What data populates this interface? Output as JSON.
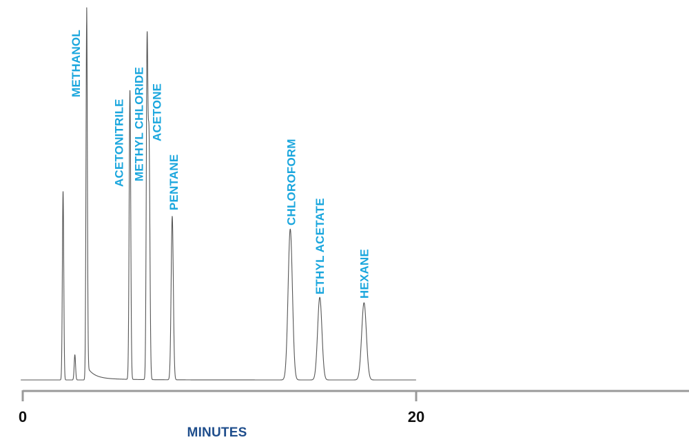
{
  "chart_data": {
    "type": "line",
    "title": "",
    "xlabel": "MINUTES",
    "ylabel": "",
    "xlim": [
      0,
      34.5
    ],
    "ylim": [
      0,
      100
    ],
    "x_ticks": [
      {
        "value": 0,
        "label": "0"
      },
      {
        "value": 20,
        "label": "20"
      }
    ],
    "trace_end": 20,
    "grid": false,
    "legend": "none",
    "colors": {
      "trace": "#555555",
      "labels": "#1aa6dd",
      "axis": "#9a9a9a",
      "tick_text": "#111111",
      "xlabel": "#1f4e8c"
    },
    "peaks": [
      {
        "name": "",
        "time": 2.05,
        "height": 52.5,
        "width": 0.035
      },
      {
        "name": "",
        "time": 2.65,
        "height": 7.0,
        "width": 0.035
      },
      {
        "name": "METHANOL",
        "time": 3.25,
        "height": 100,
        "width": 0.035,
        "tail": true
      },
      {
        "name": "ACETONITRILE",
        "time": 5.45,
        "height": 80.5,
        "width": 0.04
      },
      {
        "name": "METHYL CHLORIDE",
        "time": 6.32,
        "height": 90.5,
        "width": 0.04
      },
      {
        "name": "ACETONE",
        "time": 6.42,
        "height": 66.0,
        "width": 0.045
      },
      {
        "name": "PENTANE",
        "time": 7.6,
        "height": 45.5,
        "width": 0.055
      },
      {
        "name": "CHLOROFORM",
        "time": 13.6,
        "height": 42.0,
        "width": 0.11
      },
      {
        "name": "ETHYL ACETATE",
        "time": 15.1,
        "height": 23.0,
        "width": 0.11
      },
      {
        "name": "HEXANE",
        "time": 17.35,
        "height": 21.5,
        "width": 0.12
      }
    ]
  }
}
